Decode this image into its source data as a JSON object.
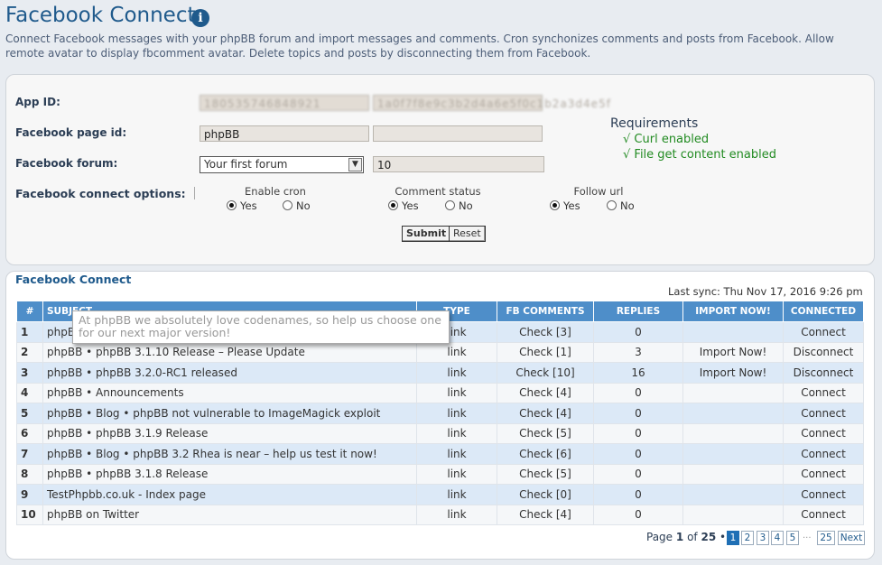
{
  "header": {
    "title": "Facebook Connect",
    "description": "Connect Facebook messages with your phpBB forum and import messages and comments. Cron synchonizes comments and posts from Facebook. Allow remote avatar to display fbcomment avatar. Delete topics and posts by disconnecting them from Facebook."
  },
  "form": {
    "app_id_label": "App ID:",
    "app_id_value": "180535746848921",
    "app_secret_value": "1a0f7f8e9c3b2d4a6e5f0c1b2a3d4e5f",
    "page_id_label": "Facebook page id:",
    "page_id_value": "phpBB",
    "page_id_extra": "",
    "forum_label": "Facebook forum:",
    "forum_selected": "Your first forum",
    "forum_count": "10",
    "options_label": "Facebook connect options:",
    "options": [
      {
        "title": "Enable cron",
        "yes": "Yes",
        "no": "No"
      },
      {
        "title": "Comment status",
        "yes": "Yes",
        "no": "No"
      },
      {
        "title": "Follow url",
        "yes": "Yes",
        "no": "No"
      }
    ],
    "submit_label": "Submit",
    "reset_label": "Reset"
  },
  "requirements": {
    "title": "Requirements",
    "items": [
      "√ Curl enabled",
      "√ File get content enabled"
    ]
  },
  "list": {
    "title": "Facebook Connect",
    "last_sync": "Last sync: Thu Nov 17, 2016 9:26 pm",
    "columns": [
      "#",
      "SUBJECT",
      "TYPE",
      "FB COMMENTS",
      "REPLIES",
      "IMPORT NOW!",
      "CONNECTED"
    ],
    "rows": [
      {
        "n": "1",
        "subject": "phpBB",
        "type": "link",
        "comments": "Check [3]",
        "replies": "0",
        "import": "",
        "status": "Connect"
      },
      {
        "n": "2",
        "subject": "phpBB • phpBB 3.1.10 Release – Please Update",
        "type": "link",
        "comments": "Check [1]",
        "replies": "3",
        "import": "Import Now!",
        "status": "Disconnect"
      },
      {
        "n": "3",
        "subject": "phpBB • phpBB 3.2.0-RC1 released",
        "type": "link",
        "comments": "Check [10]",
        "replies": "16",
        "import": "Import Now!",
        "status": "Disconnect"
      },
      {
        "n": "4",
        "subject": "phpBB • Announcements",
        "type": "link",
        "comments": "Check [4]",
        "replies": "0",
        "import": "",
        "status": "Connect"
      },
      {
        "n": "5",
        "subject": "phpBB • Blog • phpBB not vulnerable to ImageMagick exploit",
        "type": "link",
        "comments": "Check [4]",
        "replies": "0",
        "import": "",
        "status": "Connect"
      },
      {
        "n": "6",
        "subject": "phpBB • phpBB 3.1.9 Release",
        "type": "link",
        "comments": "Check [5]",
        "replies": "0",
        "import": "",
        "status": "Connect"
      },
      {
        "n": "7",
        "subject": "phpBB • Blog • phpBB 3.2 Rhea is near – help us test it now!",
        "type": "link",
        "comments": "Check [6]",
        "replies": "0",
        "import": "",
        "status": "Connect"
      },
      {
        "n": "8",
        "subject": "phpBB • phpBB 3.1.8 Release",
        "type": "link",
        "comments": "Check [5]",
        "replies": "0",
        "import": "",
        "status": "Connect"
      },
      {
        "n": "9",
        "subject": "TestPhpbb.co.uk - Index page",
        "type": "link",
        "comments": "Check [0]",
        "replies": "0",
        "import": "",
        "status": "Connect"
      },
      {
        "n": "10",
        "subject": "phpBB on Twitter",
        "type": "link",
        "comments": "Check [4]",
        "replies": "0",
        "import": "",
        "status": "Connect"
      }
    ],
    "tooltip": "At phpBB we absolutely love codenames, so help us choose one for our next major version!"
  },
  "pagination": {
    "prefix": "Page",
    "current": "1",
    "of": "of",
    "total": "25",
    "pages": [
      "1",
      "2",
      "3",
      "4",
      "5"
    ],
    "ellipsis": "...",
    "last": "25",
    "next": "Next"
  }
}
